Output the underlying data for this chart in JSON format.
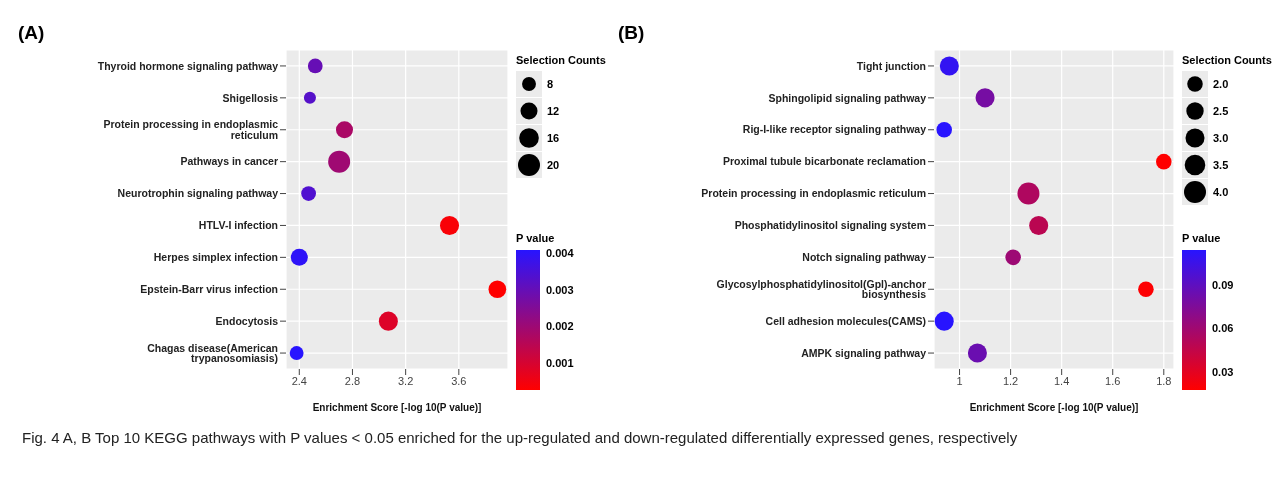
{
  "chart_data": [
    {
      "type": "bubble",
      "title": "(A)",
      "orientation": "horizontal",
      "categories": [
        "Thyroid hormone signaling pathway",
        "Shigellosis",
        "Protein processing in endoplasmic reticulum",
        "Pathways in cancer",
        "Neurotrophin signaling pathway",
        "HTLV-I infection",
        "Herpes simplex infection",
        "Epstein-Barr virus infection",
        "Endocytosis",
        "Chagas disease(American trypanosomiasis)"
      ],
      "values": [
        2.52,
        2.48,
        2.74,
        2.7,
        2.47,
        3.53,
        2.4,
        3.89,
        3.07,
        2.38
      ],
      "sizes": [
        9,
        6,
        12,
        20,
        9,
        15,
        12,
        13,
        15,
        8
      ],
      "cvalues": [
        0.003,
        0.0033,
        0.0018,
        0.002,
        0.0034,
        0.0004,
        0.004,
        0.0003,
        0.0009,
        0.0041
      ],
      "size_legend": [
        8,
        12,
        16,
        20
      ],
      "legend_title": "Selection Counts",
      "clabel": "P value",
      "clim": [
        0.0003,
        0.0041
      ],
      "cticks": [
        0.001,
        0.002,
        0.003,
        0.004
      ],
      "xlim": [
        2.3,
        3.97
      ],
      "xticks": [
        2.4,
        2.8,
        3.2,
        3.6
      ],
      "xlabel": "Enrichment Score [-log 10(P value)]",
      "grid": true,
      "annotations": [
        "Fig. 4 A, B Top 10 KEGG pathways with P values < 0.05 enriched for the up-regulated and down-regulated differentially expressed genes, respectively"
      ]
    },
    {
      "type": "bubble",
      "title": "(B)",
      "orientation": "horizontal",
      "categories": [
        "Tight junction",
        "Sphingolipid signaling pathway",
        "Rig-I-like receptor signaling pathway",
        "Proximal tubule bicarbonate reclamation",
        "Protein processing in endoplasmic reticulum",
        "Phosphatidylinositol signaling system",
        "Notch signaling pathway",
        "Glycosylphosphatidylinositol(Gpl)-anchor biosynthesis",
        "Cell adhesion molecules(CAMS)",
        "AMPK signaling pathway"
      ],
      "values": [
        0.96,
        1.1,
        0.94,
        1.8,
        1.27,
        1.31,
        1.21,
        1.73,
        0.94,
        1.07
      ],
      "sizes": [
        3.0,
        3.0,
        2.0,
        2.0,
        4.0,
        3.0,
        2.0,
        2.0,
        3.0,
        3.0
      ],
      "cvalues": [
        0.11,
        0.08,
        0.115,
        0.018,
        0.054,
        0.049,
        0.062,
        0.019,
        0.115,
        0.085
      ],
      "size_legend": [
        {
          "value": 2,
          "label": "2.0"
        },
        2.5,
        {
          "value": 3,
          "label": "3.0"
        },
        3.5,
        {
          "value": 4,
          "label": "4.0"
        }
      ],
      "legend_title": "Selection Counts",
      "clabel": "P value",
      "clim": [
        0.018,
        0.115
      ],
      "cticks": [
        0.03,
        0.06,
        0.09
      ],
      "xlim": [
        0.9,
        1.84
      ],
      "xticks": [
        1.0,
        1.2,
        1.4,
        1.6,
        1.8
      ],
      "xlabel": "Enrichment Score [-log 10(P value)]",
      "grid": true
    }
  ]
}
